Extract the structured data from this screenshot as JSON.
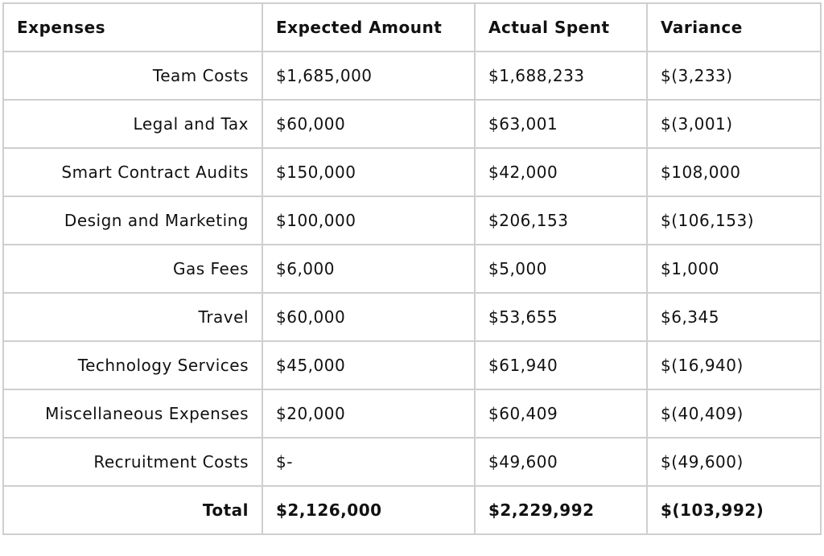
{
  "table": {
    "headers": {
      "expenses": "Expenses",
      "expected": "Expected Amount",
      "actual": "Actual Spent",
      "variance": "Variance"
    },
    "rows": [
      {
        "label": "Team Costs",
        "expected": "$1,685,000",
        "actual": "$1,688,233",
        "variance": "$(3,233)"
      },
      {
        "label": "Legal and Tax",
        "expected": "$60,000",
        "actual": "$63,001",
        "variance": "$(3,001)"
      },
      {
        "label": "Smart Contract Audits",
        "expected": "$150,000",
        "actual": "$42,000",
        "variance": "$108,000"
      },
      {
        "label": "Design and Marketing",
        "expected": "$100,000",
        "actual": "$206,153",
        "variance": "$(106,153)"
      },
      {
        "label": "Gas Fees",
        "expected": "$6,000",
        "actual": "$5,000",
        "variance": "$1,000"
      },
      {
        "label": "Travel",
        "expected": "$60,000",
        "actual": "$53,655",
        "variance": "$6,345"
      },
      {
        "label": "Technology Services",
        "expected": "$45,000",
        "actual": "$61,940",
        "variance": "$(16,940)"
      },
      {
        "label": "Miscellaneous Expenses",
        "expected": "$20,000",
        "actual": "$60,409",
        "variance": "$(40,409)"
      },
      {
        "label": "Recruitment Costs",
        "expected": "$-",
        "actual": "$49,600",
        "variance": "$(49,600)"
      }
    ],
    "total": {
      "label": "Total",
      "expected": "$2,126,000",
      "actual": "$2,229,992",
      "variance": "$(103,992)"
    }
  }
}
